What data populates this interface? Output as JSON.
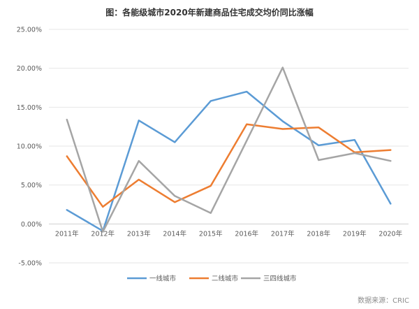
{
  "chart_data": {
    "type": "line",
    "title": "图：各能级城市2020年新建商品住宅成交均价同比涨幅",
    "categories": [
      "2011年",
      "2012年",
      "2013年",
      "2014年",
      "2015年",
      "2016年",
      "2017年",
      "2018年",
      "2019年",
      "2020年"
    ],
    "ylim": [
      -5,
      25
    ],
    "yticks": [
      25,
      20,
      15,
      10,
      5,
      0,
      -5
    ],
    "ytick_labels": [
      "25.00%",
      "20.00%",
      "15.00%",
      "10.00%",
      "5.00%",
      "0.00%",
      "-5.00%"
    ],
    "grid": "horizontal",
    "legend_position": "bottom",
    "series": [
      {
        "name": "一线城市",
        "color": "#5b9bd5",
        "values": [
          1.8,
          -0.9,
          13.3,
          10.5,
          15.8,
          17.0,
          13.2,
          10.1,
          10.8,
          2.6
        ]
      },
      {
        "name": "二线城市",
        "color": "#ed7d31",
        "values": [
          8.7,
          2.2,
          5.7,
          2.8,
          4.9,
          12.8,
          12.2,
          12.4,
          9.2,
          9.5
        ]
      },
      {
        "name": "三四线城市",
        "color": "#a5a5a5",
        "values": [
          13.4,
          -1.0,
          8.1,
          3.6,
          1.4,
          10.7,
          20.1,
          8.2,
          9.1,
          8.1
        ]
      }
    ],
    "source": "数据来源：CRIC"
  }
}
